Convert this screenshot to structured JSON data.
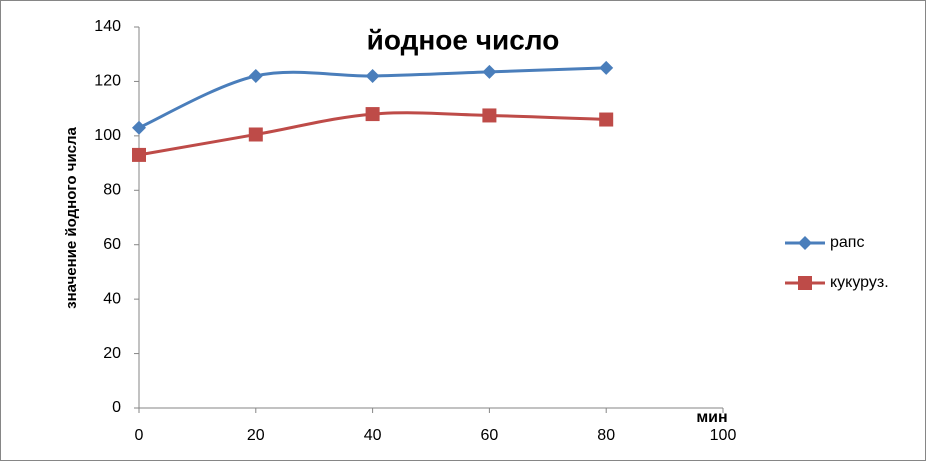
{
  "chart_data": {
    "type": "line",
    "title": "йодное число",
    "x_label": "мин",
    "y_label": "значение йодного числа",
    "x": [
      0,
      20,
      40,
      60,
      80
    ],
    "series": [
      {
        "name": "рапс",
        "color": "#4a7ebb",
        "marker": "diamond",
        "values": [
          103,
          122,
          122,
          123.5,
          125
        ]
      },
      {
        "name": "кукуруз.",
        "color": "#be4b48",
        "marker": "square",
        "values": [
          93,
          100.5,
          108,
          107.5,
          106
        ]
      }
    ],
    "xlim": [
      0,
      100
    ],
    "xticks": [
      0,
      20,
      40,
      60,
      80,
      100
    ],
    "ylim": [
      0,
      140
    ],
    "yticks": [
      0,
      20,
      40,
      60,
      80,
      100,
      120,
      140
    ],
    "grid": false,
    "smooth": true,
    "legend": "right"
  }
}
